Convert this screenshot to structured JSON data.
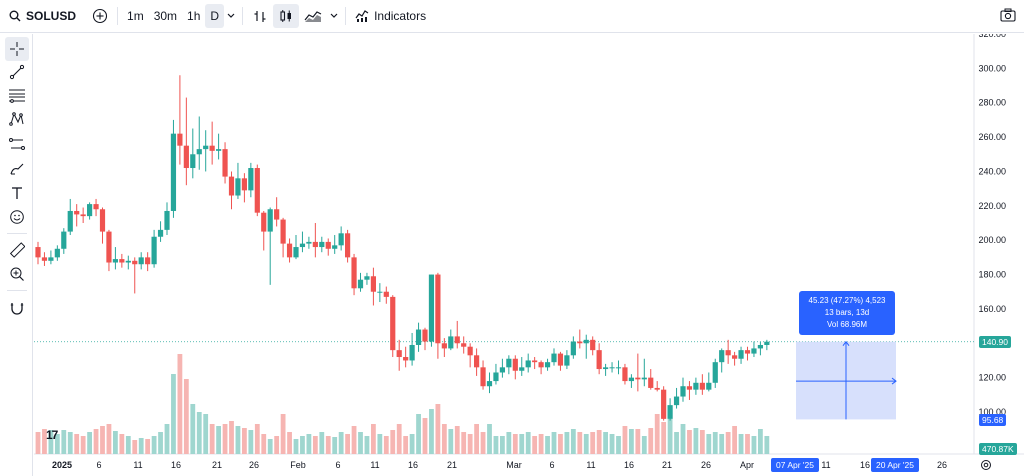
{
  "toolbar": {
    "symbol": "SOLUSD",
    "intervals": [
      "1m",
      "30m",
      "1h",
      "D"
    ],
    "active_interval": "D",
    "indicators_label": "Indicators"
  },
  "left_tools": [
    "crosshair-icon",
    "trend-line-icon",
    "horizontal-lines-icon",
    "pattern-icon",
    "forecast-icon",
    "brush-icon",
    "text-icon",
    "emoji-icon",
    "ruler-icon",
    "zoom-in-icon",
    "magnet-icon"
  ],
  "chart_data": {
    "type": "candlestick",
    "symbol": "SOLUSD",
    "timeframe": "D",
    "y_axis": {
      "ticks": [
        "320.00",
        "300.00",
        "280.00",
        "260.00",
        "240.00",
        "220.00",
        "200.00",
        "180.00",
        "160.00",
        "140.00",
        "120.00",
        "100.00"
      ],
      "range": [
        94,
        322
      ]
    },
    "x_axis": {
      "labels": [
        {
          "text": "2025",
          "bold": true
        },
        {
          "text": "6"
        },
        {
          "text": "11"
        },
        {
          "text": "16"
        },
        {
          "text": "21"
        },
        {
          "text": "26"
        },
        {
          "text": "Feb",
          "bold": false
        },
        {
          "text": "6"
        },
        {
          "text": "11"
        },
        {
          "text": "16"
        },
        {
          "text": "21"
        },
        {
          "text": "Mar"
        },
        {
          "text": "6"
        },
        {
          "text": "11"
        },
        {
          "text": "16"
        },
        {
          "text": "21"
        },
        {
          "text": "26"
        },
        {
          "text": "Apr"
        },
        {
          "text": "11"
        },
        {
          "text": "16"
        },
        {
          "text": "26"
        }
      ]
    },
    "candles": [
      [
        196,
        190,
        199,
        186
      ],
      [
        190,
        188,
        193,
        185
      ],
      [
        188,
        190,
        194,
        186
      ],
      [
        190,
        195,
        197,
        188
      ],
      [
        195,
        205,
        207,
        192
      ],
      [
        205,
        217,
        224,
        203
      ],
      [
        217,
        215,
        221,
        208
      ],
      [
        215,
        214,
        219,
        210
      ],
      [
        214,
        221,
        222,
        212
      ],
      [
        221,
        218,
        224,
        214
      ],
      [
        218,
        205,
        219,
        198
      ],
      [
        205,
        187,
        206,
        182
      ],
      [
        187,
        189,
        196,
        183
      ],
      [
        189,
        187,
        192,
        184
      ],
      [
        187,
        188,
        191,
        183
      ],
      [
        188,
        186,
        190,
        169
      ],
      [
        186,
        190,
        193,
        183
      ],
      [
        190,
        186,
        193,
        182
      ],
      [
        186,
        202,
        206,
        184
      ],
      [
        202,
        206,
        211,
        199
      ],
      [
        206,
        217,
        222,
        203
      ],
      [
        217,
        262,
        270,
        213
      ],
      [
        262,
        255,
        296,
        244
      ],
      [
        255,
        242,
        283,
        232
      ],
      [
        242,
        250,
        265,
        236
      ],
      [
        250,
        253,
        272,
        241
      ],
      [
        253,
        255,
        264,
        240
      ],
      [
        255,
        252,
        269,
        244
      ],
      [
        252,
        253,
        262,
        247
      ],
      [
        253,
        237,
        257,
        233
      ],
      [
        237,
        226,
        240,
        218
      ],
      [
        226,
        236,
        245,
        224
      ],
      [
        236,
        229,
        239,
        222
      ],
      [
        229,
        242,
        245,
        225
      ],
      [
        242,
        216,
        244,
        214
      ],
      [
        216,
        205,
        217,
        194
      ],
      [
        205,
        218,
        219,
        174
      ],
      [
        218,
        212,
        225,
        208
      ],
      [
        212,
        198,
        213,
        190
      ],
      [
        198,
        190,
        201,
        187
      ],
      [
        190,
        196,
        203,
        189
      ],
      [
        196,
        198,
        205,
        193
      ],
      [
        198,
        199,
        202,
        195
      ],
      [
        199,
        196,
        210,
        190
      ],
      [
        196,
        199,
        202,
        193
      ],
      [
        199,
        195,
        201,
        191
      ],
      [
        195,
        197,
        203,
        192
      ],
      [
        197,
        204,
        208,
        194
      ],
      [
        204,
        190,
        206,
        187
      ],
      [
        190,
        172,
        192,
        168
      ],
      [
        172,
        177,
        181,
        170
      ],
      [
        177,
        179,
        181,
        174
      ],
      [
        179,
        170,
        184,
        162
      ],
      [
        170,
        170,
        175,
        164
      ],
      [
        170,
        167,
        173,
        163
      ],
      [
        167,
        136,
        168,
        132
      ],
      [
        136,
        132,
        142,
        124
      ],
      [
        132,
        130,
        138,
        126
      ],
      [
        130,
        139,
        146,
        127
      ],
      [
        139,
        148,
        152,
        135
      ],
      [
        148,
        141,
        149,
        136
      ],
      [
        141,
        180,
        180,
        138
      ],
      [
        180,
        140,
        181,
        131
      ],
      [
        140,
        137,
        143,
        132
      ],
      [
        137,
        144,
        148,
        136
      ],
      [
        144,
        140,
        153,
        137
      ],
      [
        140,
        138,
        144,
        134
      ],
      [
        138,
        133,
        140,
        126
      ],
      [
        133,
        126,
        137,
        121
      ],
      [
        126,
        115,
        130,
        113
      ],
      [
        115,
        118,
        123,
        111
      ],
      [
        118,
        123,
        128,
        116
      ],
      [
        123,
        126,
        131,
        120
      ],
      [
        126,
        131,
        133,
        122
      ],
      [
        131,
        124,
        133,
        119
      ],
      [
        124,
        126,
        132,
        121
      ],
      [
        126,
        130,
        134,
        123
      ],
      [
        130,
        129,
        132,
        125
      ],
      [
        129,
        126,
        130,
        122
      ],
      [
        126,
        129,
        131,
        124
      ],
      [
        129,
        134,
        137,
        127
      ],
      [
        134,
        127,
        135,
        124
      ],
      [
        127,
        133,
        136,
        125
      ],
      [
        133,
        141,
        144,
        131
      ],
      [
        141,
        140,
        148,
        137
      ],
      [
        140,
        142,
        145,
        131
      ],
      [
        142,
        136,
        144,
        133
      ],
      [
        136,
        125,
        140,
        122
      ],
      [
        125,
        126,
        128,
        121
      ],
      [
        126,
        126,
        129,
        123
      ],
      [
        126,
        126,
        130,
        122
      ],
      [
        126,
        118,
        128,
        116
      ],
      [
        118,
        120,
        122,
        114
      ],
      [
        120,
        119,
        134,
        112
      ],
      [
        119,
        120,
        131,
        115
      ],
      [
        120,
        114,
        125,
        113
      ],
      [
        114,
        113,
        118,
        112
      ],
      [
        113,
        96,
        115,
        95
      ],
      [
        96,
        104,
        108,
        95
      ],
      [
        104,
        109,
        114,
        102
      ],
      [
        109,
        115,
        120,
        106
      ],
      [
        115,
        113,
        118,
        107
      ],
      [
        113,
        117,
        120,
        110
      ],
      [
        117,
        113,
        122,
        110
      ],
      [
        113,
        117,
        123,
        112
      ],
      [
        117,
        129,
        131,
        114
      ],
      [
        129,
        136,
        137,
        123
      ],
      [
        136,
        133,
        142,
        128
      ],
      [
        133,
        131,
        135,
        127
      ],
      [
        131,
        136,
        138,
        128
      ],
      [
        136,
        134,
        138,
        130
      ],
      [
        134,
        137,
        141,
        132
      ],
      [
        137,
        139,
        141,
        133
      ],
      [
        139,
        140.9,
        142,
        136
      ]
    ],
    "volume_max_label": "470.87K",
    "last_price": "140.90",
    "measure": {
      "line1": "45.23 (47.27%) 4,523",
      "line2": "13 bars, 13d",
      "line3": "Vol 68.96M",
      "start_price": "95.68",
      "start_date": "07 Apr '25",
      "end_date": "20 Apr '25"
    },
    "colors": {
      "up": "#26a69a",
      "down": "#ef5350",
      "up_volume": "#9fd6cf",
      "down_volume": "#f6b5b2",
      "measure": "#2962ff",
      "measure_fill": "#c9d6fb"
    }
  }
}
